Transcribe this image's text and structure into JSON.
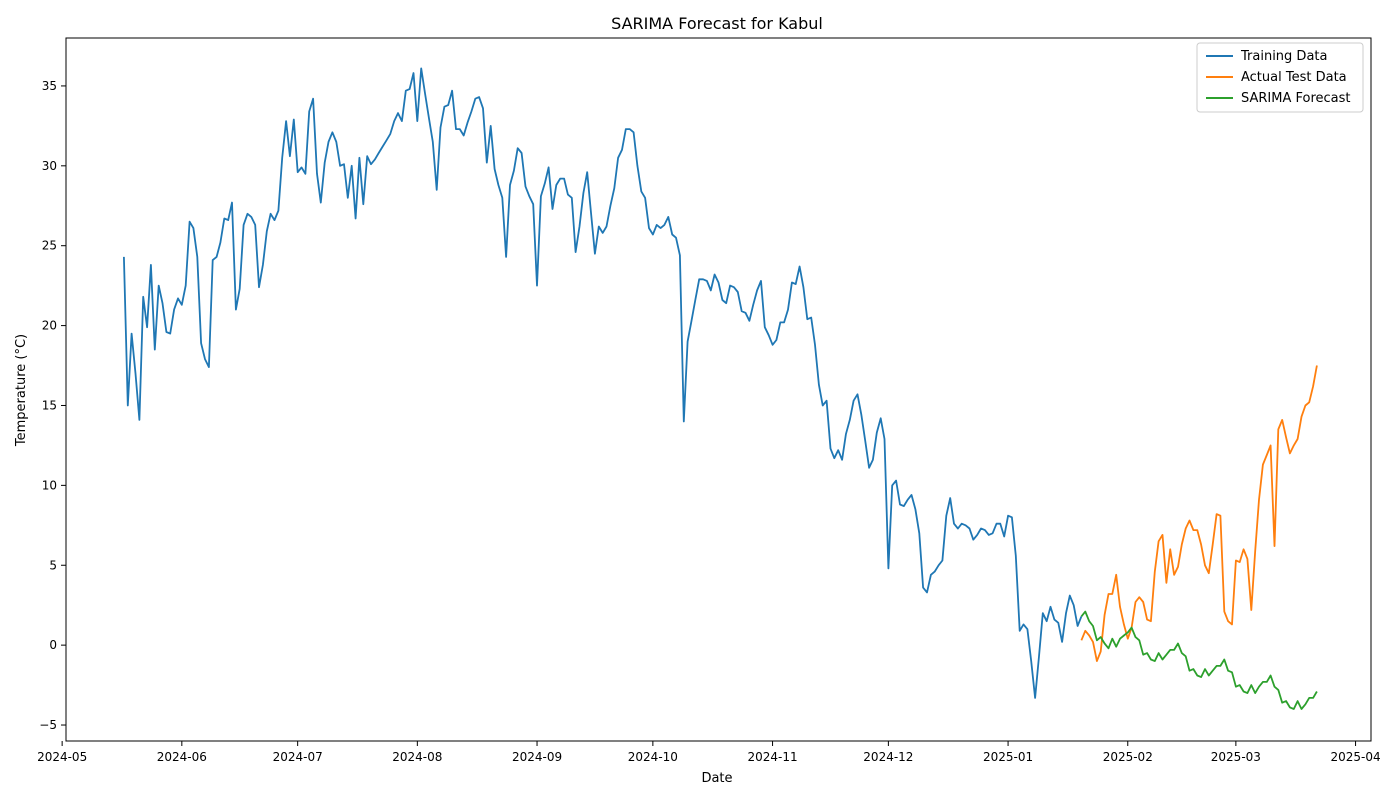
{
  "chart_data": {
    "type": "line",
    "title": "SARIMA Forecast for Kabul",
    "xlabel": "Date",
    "ylabel": "Temperature (°C)",
    "xlim": [
      "2024-05-02",
      "2025-04-05"
    ],
    "ylim": [
      -6,
      38
    ],
    "x_ticks": [
      "2024-05",
      "2024-06",
      "2024-07",
      "2024-08",
      "2024-09",
      "2024-10",
      "2024-11",
      "2024-12",
      "2025-01",
      "2025-02",
      "2025-03",
      "2025-04"
    ],
    "y_ticks": [
      -5,
      0,
      5,
      10,
      15,
      20,
      25,
      30,
      35
    ],
    "grid": false,
    "legend_position": "upper right",
    "series": [
      {
        "name": "Training Data",
        "color": "#1f77b4",
        "start_date": "2024-05-17",
        "values": [
          24.3,
          15.0,
          19.5,
          17.0,
          14.1,
          21.8,
          19.9,
          23.8,
          18.5,
          22.5,
          21.4,
          19.6,
          19.5,
          21.0,
          21.7,
          21.3,
          22.5,
          26.5,
          26.1,
          24.3,
          18.9,
          17.9,
          17.4,
          24.1,
          24.3,
          25.2,
          26.7,
          26.6,
          27.7,
          21.0,
          22.3,
          26.3,
          27.0,
          26.8,
          26.3,
          22.4,
          23.8,
          25.9,
          27.0,
          26.6,
          27.2,
          30.5,
          32.8,
          30.6,
          32.9,
          29.6,
          29.9,
          29.5,
          33.4,
          34.2,
          29.5,
          27.7,
          30.2,
          31.5,
          32.1,
          31.5,
          30.0,
          30.1,
          28.0,
          30.0,
          26.7,
          30.5,
          27.6,
          30.6,
          30.1,
          30.4,
          30.8,
          31.2,
          31.6,
          32.0,
          32.8,
          33.3,
          32.8,
          34.7,
          34.8,
          35.8,
          32.8,
          36.1,
          34.5,
          33.0,
          31.5,
          28.5,
          32.4,
          33.7,
          33.8,
          34.7,
          32.3,
          32.3,
          31.9,
          32.7,
          33.4,
          34.2,
          34.3,
          33.6,
          30.2,
          32.5,
          29.8,
          28.8,
          28.0,
          24.3,
          28.8,
          29.7,
          31.1,
          30.8,
          28.7,
          28.1,
          27.6,
          22.5,
          28.1,
          28.9,
          29.9,
          27.3,
          28.8,
          29.2,
          29.2,
          28.2,
          28.0,
          24.6,
          26.2,
          28.3,
          29.6,
          27.0,
          24.5,
          26.2,
          25.8,
          26.2,
          27.5,
          28.6,
          30.5,
          31.0,
          32.3,
          32.3,
          32.1,
          30.0,
          28.4,
          28.0,
          26.1,
          25.7,
          26.3,
          26.1,
          26.3,
          26.8,
          25.7,
          25.5,
          24.4,
          14.0,
          19.0,
          20.3,
          21.6,
          22.9,
          22.9,
          22.8,
          22.2,
          23.2,
          22.7,
          21.6,
          21.4,
          22.5,
          22.4,
          22.1,
          20.9,
          20.8,
          20.3,
          21.3,
          22.2,
          22.8,
          19.9,
          19.4,
          18.8,
          19.1,
          20.2,
          20.2,
          21.0,
          22.7,
          22.6,
          23.7,
          22.4,
          20.4,
          20.5,
          18.8,
          16.3,
          15.0,
          15.3,
          12.3,
          11.7,
          12.2,
          11.6,
          13.2,
          14.1,
          15.3,
          15.7,
          14.4,
          12.8,
          11.1,
          11.6,
          13.3,
          14.2,
          12.9,
          4.8,
          10.0,
          10.3,
          8.8,
          8.7,
          9.1,
          9.4,
          8.5,
          7.0,
          3.6,
          3.3,
          4.4,
          4.6,
          5.0,
          5.3,
          8.1,
          9.2,
          7.6,
          7.3,
          7.6,
          7.5,
          7.3,
          6.6,
          6.9,
          7.3,
          7.2,
          6.9,
          7.0,
          7.6,
          7.6,
          6.8,
          8.1,
          8.0,
          5.6,
          0.9,
          1.3,
          1.0,
          -1.0,
          -3.3,
          -0.7,
          2.0,
          1.5,
          2.4,
          1.6,
          1.4,
          0.2,
          2.0,
          3.1,
          2.5,
          1.2,
          1.8
        ]
      },
      {
        "name": "Actual Test Data",
        "color": "#ff7f0e",
        "start_date": "2025-01-20",
        "values": [
          0.3,
          0.9,
          0.6,
          0.2,
          -1.0,
          -0.4,
          1.9,
          3.2,
          3.2,
          4.4,
          2.4,
          1.3,
          0.4,
          1.1,
          2.7,
          3.0,
          2.7,
          1.6,
          1.5,
          4.6,
          6.5,
          6.9,
          3.9,
          6.0,
          4.4,
          4.9,
          6.3,
          7.3,
          7.8,
          7.2,
          7.2,
          6.3,
          5.0,
          4.5,
          6.3,
          8.2,
          8.1,
          2.1,
          1.5,
          1.3,
          5.3,
          5.2,
          6.0,
          5.4,
          2.2,
          5.9,
          9.1,
          11.3,
          11.9,
          12.5,
          6.2,
          13.5,
          14.1,
          13.0,
          12.0,
          12.5,
          12.9,
          14.3,
          15.0,
          15.2,
          16.2,
          17.5
        ]
      },
      {
        "name": "SARIMA Forecast",
        "color": "#2ca02c",
        "start_date": "2025-01-20",
        "values": [
          1.8,
          2.1,
          1.5,
          1.2,
          0.3,
          0.5,
          0.1,
          -0.2,
          0.4,
          -0.1,
          0.4,
          0.6,
          0.8,
          1.1,
          0.5,
          0.3,
          -0.6,
          -0.5,
          -0.9,
          -1.0,
          -0.5,
          -0.9,
          -0.6,
          -0.3,
          -0.3,
          0.1,
          -0.5,
          -0.7,
          -1.6,
          -1.5,
          -1.9,
          -2.0,
          -1.5,
          -1.9,
          -1.6,
          -1.3,
          -1.3,
          -0.9,
          -1.6,
          -1.7,
          -2.6,
          -2.5,
          -2.9,
          -3.0,
          -2.5,
          -3.0,
          -2.6,
          -2.3,
          -2.3,
          -1.9,
          -2.6,
          -2.8,
          -3.6,
          -3.5,
          -3.9,
          -4.0,
          -3.5,
          -4.0,
          -3.7,
          -3.3,
          -3.3,
          -2.9
        ]
      }
    ]
  }
}
